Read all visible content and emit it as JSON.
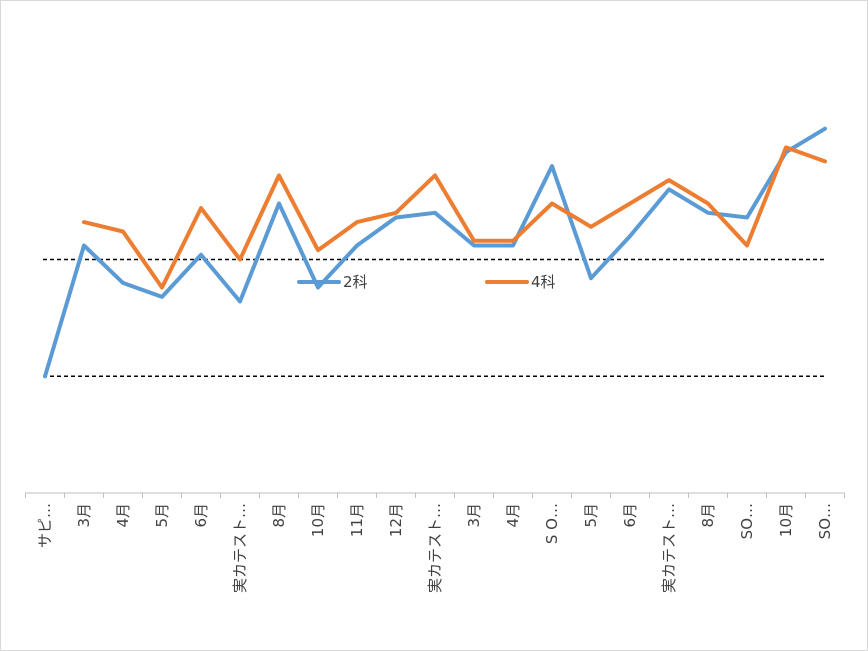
{
  "chart_data": {
    "type": "line",
    "title": "",
    "xlabel": "",
    "ylabel": "",
    "ylim": [
      0,
      100
    ],
    "grid": false,
    "legend": "center",
    "categories": [
      "サピ…",
      "3月",
      "4月",
      "5月",
      "6月",
      "実カテスト…",
      "8月",
      "10月",
      "11月",
      "12月",
      "実カテスト…",
      "3月",
      "4月",
      "S O…",
      "5月",
      "6月",
      "実カテスト…",
      "8月",
      "SO…",
      "10月",
      "SO…"
    ],
    "reference_lines": [
      50,
      25
    ],
    "series": [
      {
        "name": "2科",
        "color": "#5b9bd5",
        "values": [
          25,
          53,
          45,
          42,
          51,
          41,
          62,
          44,
          53,
          59,
          60,
          53,
          53,
          70,
          46,
          55,
          65,
          60,
          59,
          73,
          78
        ]
      },
      {
        "name": "4科",
        "color": "#ed7d31",
        "values": [
          null,
          58,
          56,
          44,
          61,
          50,
          68,
          52,
          58,
          60,
          68,
          54,
          54,
          62,
          57,
          62,
          67,
          62,
          53,
          74,
          71
        ]
      }
    ]
  }
}
